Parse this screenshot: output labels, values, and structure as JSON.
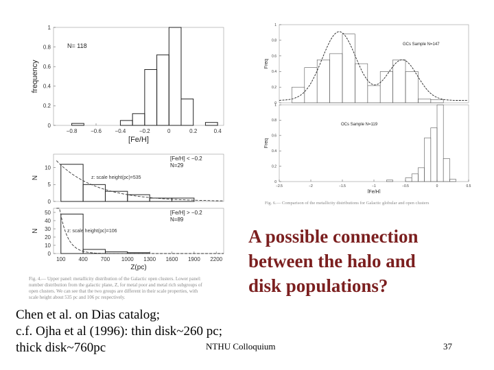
{
  "slide": {
    "title_lines": [
      "A possible connection",
      "between the halo and",
      "disk populations?"
    ],
    "footer_lines": [
      "Chen et al. on Dias catalog;",
      "c.f. Ojha et al (1996): thin disk~260 pc;",
      "thick disk~760pc"
    ],
    "colloquium": "NTHU Colloquium",
    "page_number": "37",
    "left_caption_lines": [
      "Fig. 4.— Upper panel: metallicity distribution of the Galactic open clusters. Lower panel:",
      "number distribution from the galactic plane, Z, for metal poor and metal rich subgroups of",
      "open clusters.   We can see that the two groups are different in their scale properties, with",
      "scale height about 535 pc and 106 pc respectively."
    ],
    "right_caption": "Fig. 6.— Comparison of the metallicity distributions for Galactic globular and open clusters"
  },
  "chart_data": [
    {
      "type": "bar",
      "annotation": "N= 118",
      "xlabel": "[Fe/H]",
      "ylabel": "frequency",
      "xlim": [
        -0.95,
        0.45
      ],
      "ylim": [
        0,
        1
      ],
      "xticks": [
        "−0.8",
        "−0.6",
        "−0.4",
        "−0.2",
        "0",
        "0.2",
        "0.4"
      ],
      "yticks": [
        "0",
        "0.2",
        "0.4",
        "0.6",
        "0.8",
        "1"
      ],
      "bins": [
        {
          "x0": -0.8,
          "x1": -0.7,
          "value": 0.02
        },
        {
          "x0": -0.4,
          "x1": -0.3,
          "value": 0.05
        },
        {
          "x0": -0.3,
          "x1": -0.2,
          "value": 0.12
        },
        {
          "x0": -0.2,
          "x1": -0.1,
          "value": 0.57
        },
        {
          "x0": -0.1,
          "x1": 0.0,
          "value": 0.72
        },
        {
          "x0": 0.0,
          "x1": 0.1,
          "value": 1.0
        },
        {
          "x0": 0.1,
          "x1": 0.2,
          "value": 0.27
        },
        {
          "x0": 0.3,
          "x1": 0.4,
          "value": 0.03
        }
      ]
    },
    {
      "type": "bar",
      "annotation_lines": [
        "[Fe/H] < −0.2",
        "N=29"
      ],
      "fit_label": "z: scale height(pc)=535",
      "ylabel": "N",
      "xlim": [
        0,
        2300
      ],
      "ylim": [
        0,
        14
      ],
      "yticks": [
        "0",
        "5",
        "10"
      ],
      "bins": [
        {
          "x0": 100,
          "x1": 400,
          "value": 11
        },
        {
          "x0": 400,
          "x1": 700,
          "value": 5
        },
        {
          "x0": 700,
          "x1": 1000,
          "value": 3
        },
        {
          "x0": 1000,
          "x1": 1300,
          "value": 2
        },
        {
          "x0": 1300,
          "x1": 1600,
          "value": 1
        },
        {
          "x0": 1600,
          "x1": 1900,
          "value": 1
        },
        {
          "x0": 1900,
          "x1": 2200,
          "value": 0
        }
      ],
      "fit": {
        "amplitude": 13,
        "scale_height": 535
      }
    },
    {
      "type": "bar",
      "annotation_lines": [
        "[Fe/H] > −0.2",
        "N=89"
      ],
      "fit_label": "z: scale height(pc)=106",
      "xlabel": "Z(pc)",
      "ylabel": "N",
      "xlim": [
        0,
        2300
      ],
      "ylim": [
        0,
        55
      ],
      "xticks": [
        "100",
        "400",
        "700",
        "1000",
        "1300",
        "1600",
        "1900",
        "2200"
      ],
      "yticks": [
        "0",
        "10",
        "20",
        "30",
        "40",
        "50"
      ],
      "bins": [
        {
          "x0": 100,
          "x1": 400,
          "value": 48
        },
        {
          "x0": 400,
          "x1": 700,
          "value": 5
        },
        {
          "x0": 700,
          "x1": 1000,
          "value": 2
        },
        {
          "x0": 1000,
          "x1": 1300,
          "value": 1
        },
        {
          "x0": 1300,
          "x1": 1600,
          "value": 0
        },
        {
          "x0": 1600,
          "x1": 1900,
          "value": 0
        },
        {
          "x0": 1900,
          "x1": 2200,
          "value": 0
        }
      ],
      "fit": {
        "amplitude": 120,
        "scale_height": 106
      }
    },
    {
      "type": "bar",
      "annotation": "GCs Sample  N=147",
      "ylabel": "Freq",
      "xlim": [
        -2.5,
        0.5
      ],
      "ylim": [
        0,
        1
      ],
      "yticks": [
        "0",
        "0.2",
        "0.4",
        "0.6",
        "0.8",
        "1"
      ],
      "bins": [
        {
          "x0": -2.3,
          "x1": -2.1,
          "value": 0.2
        },
        {
          "x0": -2.1,
          "x1": -1.9,
          "value": 0.45
        },
        {
          "x0": -1.9,
          "x1": -1.7,
          "value": 0.55
        },
        {
          "x0": -1.7,
          "x1": -1.5,
          "value": 0.63
        },
        {
          "x0": -1.5,
          "x1": -1.3,
          "value": 0.88
        },
        {
          "x0": -1.3,
          "x1": -1.1,
          "value": 0.5
        },
        {
          "x0": -1.1,
          "x1": -0.9,
          "value": 0.22
        },
        {
          "x0": -0.9,
          "x1": -0.7,
          "value": 0.4
        },
        {
          "x0": -0.7,
          "x1": -0.5,
          "value": 0.55
        },
        {
          "x0": -0.5,
          "x1": -0.3,
          "value": 0.4
        },
        {
          "x0": -0.3,
          "x1": -0.1,
          "value": 0.05
        },
        {
          "x0": -0.1,
          "x1": 0.1,
          "value": 0.04
        }
      ],
      "fit": {
        "components": [
          {
            "mu": -1.55,
            "sigma": 0.27,
            "amp": 0.88
          },
          {
            "mu": -0.55,
            "sigma": 0.24,
            "amp": 0.52
          }
        ]
      }
    },
    {
      "type": "bar",
      "annotation": "OCs Sample  N=119",
      "xlabel": "[Fe/H]",
      "ylabel": "Freq",
      "xlim": [
        -2.5,
        0.5
      ],
      "ylim": [
        0,
        1
      ],
      "xticks": [
        "−2.5",
        "−2",
        "−1.5",
        "−1",
        "−0.5",
        "0",
        "0.5"
      ],
      "yticks": [
        "0",
        "0.2",
        "0.4",
        "0.6",
        "0.8",
        "1"
      ],
      "bins": [
        {
          "x0": -0.8,
          "x1": -0.7,
          "value": 0.02
        },
        {
          "x0": -0.5,
          "x1": -0.4,
          "value": 0.05
        },
        {
          "x0": -0.4,
          "x1": -0.3,
          "value": 0.1
        },
        {
          "x0": -0.3,
          "x1": -0.2,
          "value": 0.18
        },
        {
          "x0": -0.2,
          "x1": -0.1,
          "value": 0.57
        },
        {
          "x0": -0.1,
          "x1": 0.0,
          "value": 0.7
        },
        {
          "x0": 0.0,
          "x1": 0.1,
          "value": 1.0
        },
        {
          "x0": 0.1,
          "x1": 0.2,
          "value": 0.3
        },
        {
          "x0": 0.2,
          "x1": 0.3,
          "value": 0.03
        }
      ]
    }
  ]
}
